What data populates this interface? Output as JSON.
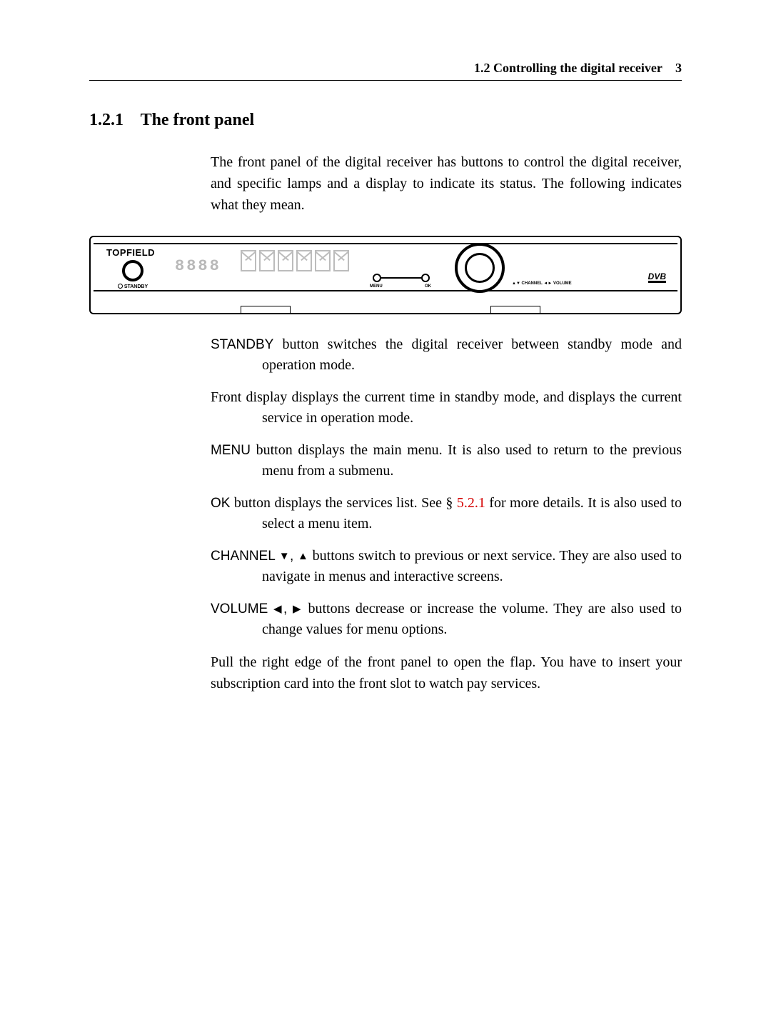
{
  "header": {
    "section": "1.2 Controlling the digital receiver",
    "page": "3"
  },
  "section": {
    "number": "1.2.1",
    "title": "The front panel"
  },
  "intro": "The front panel of the digital receiver has buttons to control the digital receiver, and specific lamps and a display to indicate its status. The following indicates what they mean.",
  "panel": {
    "brand": "TOPFIELD",
    "standby": "STANDBY",
    "time_display": "8888",
    "menu": "MENU",
    "ok": "OK",
    "channel_volume": "▲▼ CHANNEL   ◄► VOLUME",
    "dvb": "DVB"
  },
  "defs": [
    {
      "term": "STANDBY",
      "term_class": "term",
      "text": " button switches the digital receiver between standby mode and operation mode."
    },
    {
      "term": "Front display",
      "term_class": "term-serif",
      "text": " displays the current time in standby mode, and displays the current service in operation mode."
    },
    {
      "term": "MENU",
      "term_class": "term",
      "text": " button displays the main menu. It is also used to return to the previous menu from a submenu."
    },
    {
      "term": "OK",
      "term_class": "term",
      "pre": " button displays the services list. See § ",
      "ref": "5.2.1",
      "post": " for more details. It is also used to select a menu item."
    },
    {
      "term": "CHANNEL ▼, ▲",
      "term_class": "term",
      "text": " buttons switch to previous or next service. They are also used to navigate in menus and interactive screens."
    },
    {
      "term": "VOLUME ◀, ▶",
      "term_class": "term",
      "text": " buttons decrease or increase the volume. They are also used to change values for menu options."
    }
  ],
  "closing": "Pull the right edge of the front panel to open the flap. You have to insert your subscription card into the front slot to watch pay services."
}
